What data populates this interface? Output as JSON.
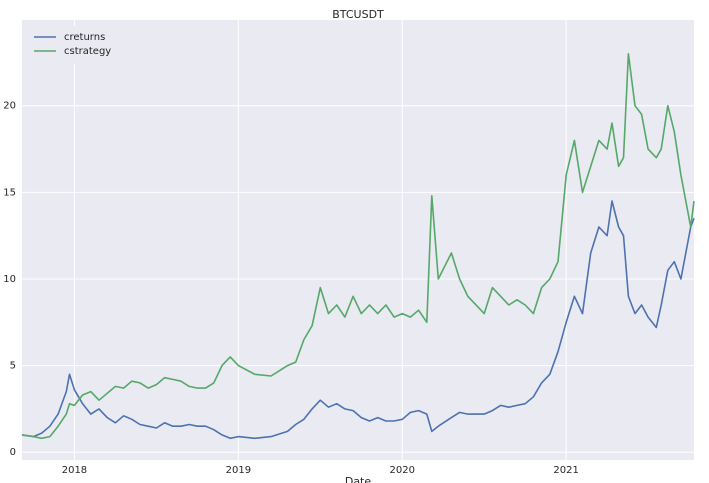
{
  "chart_data": {
    "type": "line",
    "title": "BTCUSDT",
    "xlabel": "Date",
    "x": [
      2017.68,
      2017.75,
      2017.8,
      2017.85,
      2017.9,
      2017.95,
      2017.97,
      2018.0,
      2018.05,
      2018.1,
      2018.15,
      2018.2,
      2018.25,
      2018.3,
      2018.35,
      2018.4,
      2018.45,
      2018.5,
      2018.55,
      2018.6,
      2018.65,
      2018.7,
      2018.75,
      2018.8,
      2018.85,
      2018.9,
      2018.95,
      2019.0,
      2019.1,
      2019.2,
      2019.3,
      2019.35,
      2019.4,
      2019.45,
      2019.5,
      2019.55,
      2019.6,
      2019.65,
      2019.7,
      2019.75,
      2019.8,
      2019.85,
      2019.9,
      2019.95,
      2020.0,
      2020.05,
      2020.1,
      2020.15,
      2020.18,
      2020.22,
      2020.3,
      2020.35,
      2020.4,
      2020.5,
      2020.55,
      2020.6,
      2020.65,
      2020.7,
      2020.75,
      2020.8,
      2020.85,
      2020.9,
      2020.95,
      2021.0,
      2021.05,
      2021.1,
      2021.15,
      2021.2,
      2021.25,
      2021.28,
      2021.32,
      2021.35,
      2021.38,
      2021.42,
      2021.46,
      2021.5,
      2021.55,
      2021.58,
      2021.62,
      2021.66,
      2021.7,
      2021.73,
      2021.76,
      2021.78
    ],
    "series": [
      {
        "name": "creturns",
        "color": "#4c72b0",
        "values": [
          1.0,
          0.9,
          1.1,
          1.5,
          2.2,
          3.5,
          4.5,
          3.6,
          2.8,
          2.2,
          2.5,
          2.0,
          1.7,
          2.1,
          1.9,
          1.6,
          1.5,
          1.4,
          1.7,
          1.5,
          1.5,
          1.6,
          1.5,
          1.5,
          1.3,
          1.0,
          0.8,
          0.9,
          0.8,
          0.9,
          1.2,
          1.6,
          1.9,
          2.5,
          3.0,
          2.6,
          2.8,
          2.5,
          2.4,
          2.0,
          1.8,
          2.0,
          1.8,
          1.8,
          1.9,
          2.3,
          2.4,
          2.2,
          1.2,
          1.5,
          2.0,
          2.3,
          2.2,
          2.2,
          2.4,
          2.7,
          2.6,
          2.7,
          2.8,
          3.2,
          4.0,
          4.5,
          5.8,
          7.5,
          9.0,
          8.0,
          11.5,
          13.0,
          12.5,
          14.5,
          13.0,
          12.5,
          9.0,
          8.0,
          8.5,
          7.8,
          7.2,
          8.5,
          10.5,
          11.0,
          10.0,
          11.5,
          13.0,
          13.5
        ]
      },
      {
        "name": "cstrategy",
        "color": "#55a868",
        "values": [
          1.0,
          0.9,
          0.8,
          0.9,
          1.5,
          2.2,
          2.8,
          2.7,
          3.3,
          3.5,
          3.0,
          3.4,
          3.8,
          3.7,
          4.1,
          4.0,
          3.7,
          3.9,
          4.3,
          4.2,
          4.1,
          3.8,
          3.7,
          3.7,
          4.0,
          5.0,
          5.5,
          5.0,
          4.5,
          4.4,
          5.0,
          5.2,
          6.5,
          7.3,
          9.5,
          8.0,
          8.5,
          7.8,
          9.0,
          8.0,
          8.5,
          8.0,
          8.5,
          7.8,
          8.0,
          7.8,
          8.2,
          7.5,
          14.8,
          10.0,
          11.5,
          10.0,
          9.0,
          8.0,
          9.5,
          9.0,
          8.5,
          8.8,
          8.5,
          8.0,
          9.5,
          10.0,
          11.0,
          16.0,
          18.0,
          15.0,
          16.5,
          18.0,
          17.5,
          19.0,
          16.5,
          17.0,
          23.0,
          20.0,
          19.5,
          17.5,
          17.0,
          17.5,
          20.0,
          18.5,
          16.0,
          14.5,
          13.0,
          14.5
        ]
      }
    ],
    "xlim": [
      2017.68,
      2021.78
    ],
    "xticks": [
      2018,
      2019,
      2020,
      2021
    ],
    "ylim": [
      -0.45,
      24.95
    ],
    "yticks": [
      0,
      5,
      10,
      15,
      20
    ],
    "grid": true,
    "legend": "upper left"
  }
}
